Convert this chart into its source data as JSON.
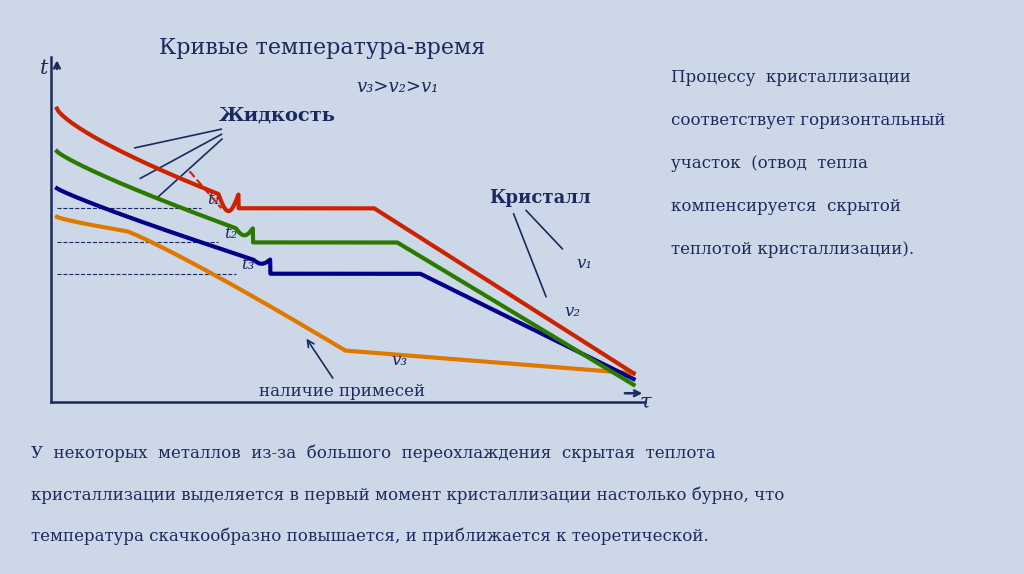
{
  "title": "Кривые температура-время",
  "bg_color": "#ccd8e8",
  "text_color": "#1a2a5e",
  "xlabel": "τ",
  "ylabel": "t",
  "curve_v1_color": "#cc2200",
  "curve_v2_color": "#2a7a00",
  "curve_v3_color": "#00008b",
  "curve_v4_color": "#e07800",
  "dashed_color": "#cc2200",
  "label_zhidkost": "Жидкость",
  "label_kristall": "Кристалл",
  "label_v1": "v₁",
  "label_v2": "v₂",
  "label_v3": "v₃",
  "label_speed": "v₃>v₂>v₁",
  "label_primes": "наличие примесей",
  "label_t1": "t₁",
  "label_t2": "t₂",
  "label_t3": "t₃",
  "right_text_lines": [
    "Процессу  кристаллизации",
    "соответствует горизонтальный",
    "участок  (отвод  тепла",
    "компенсируется  скрытой",
    "теплотой кристаллизации)."
  ],
  "bottom_text_lines": [
    "У  некоторых  металлов  из-за  большого  переохлаждения  скрытая  теплота",
    "кристаллизации выделяется в первый момент кристаллизации настолько бурно, что",
    "температура скачкообразно повышается, и приближается к теоретической."
  ]
}
